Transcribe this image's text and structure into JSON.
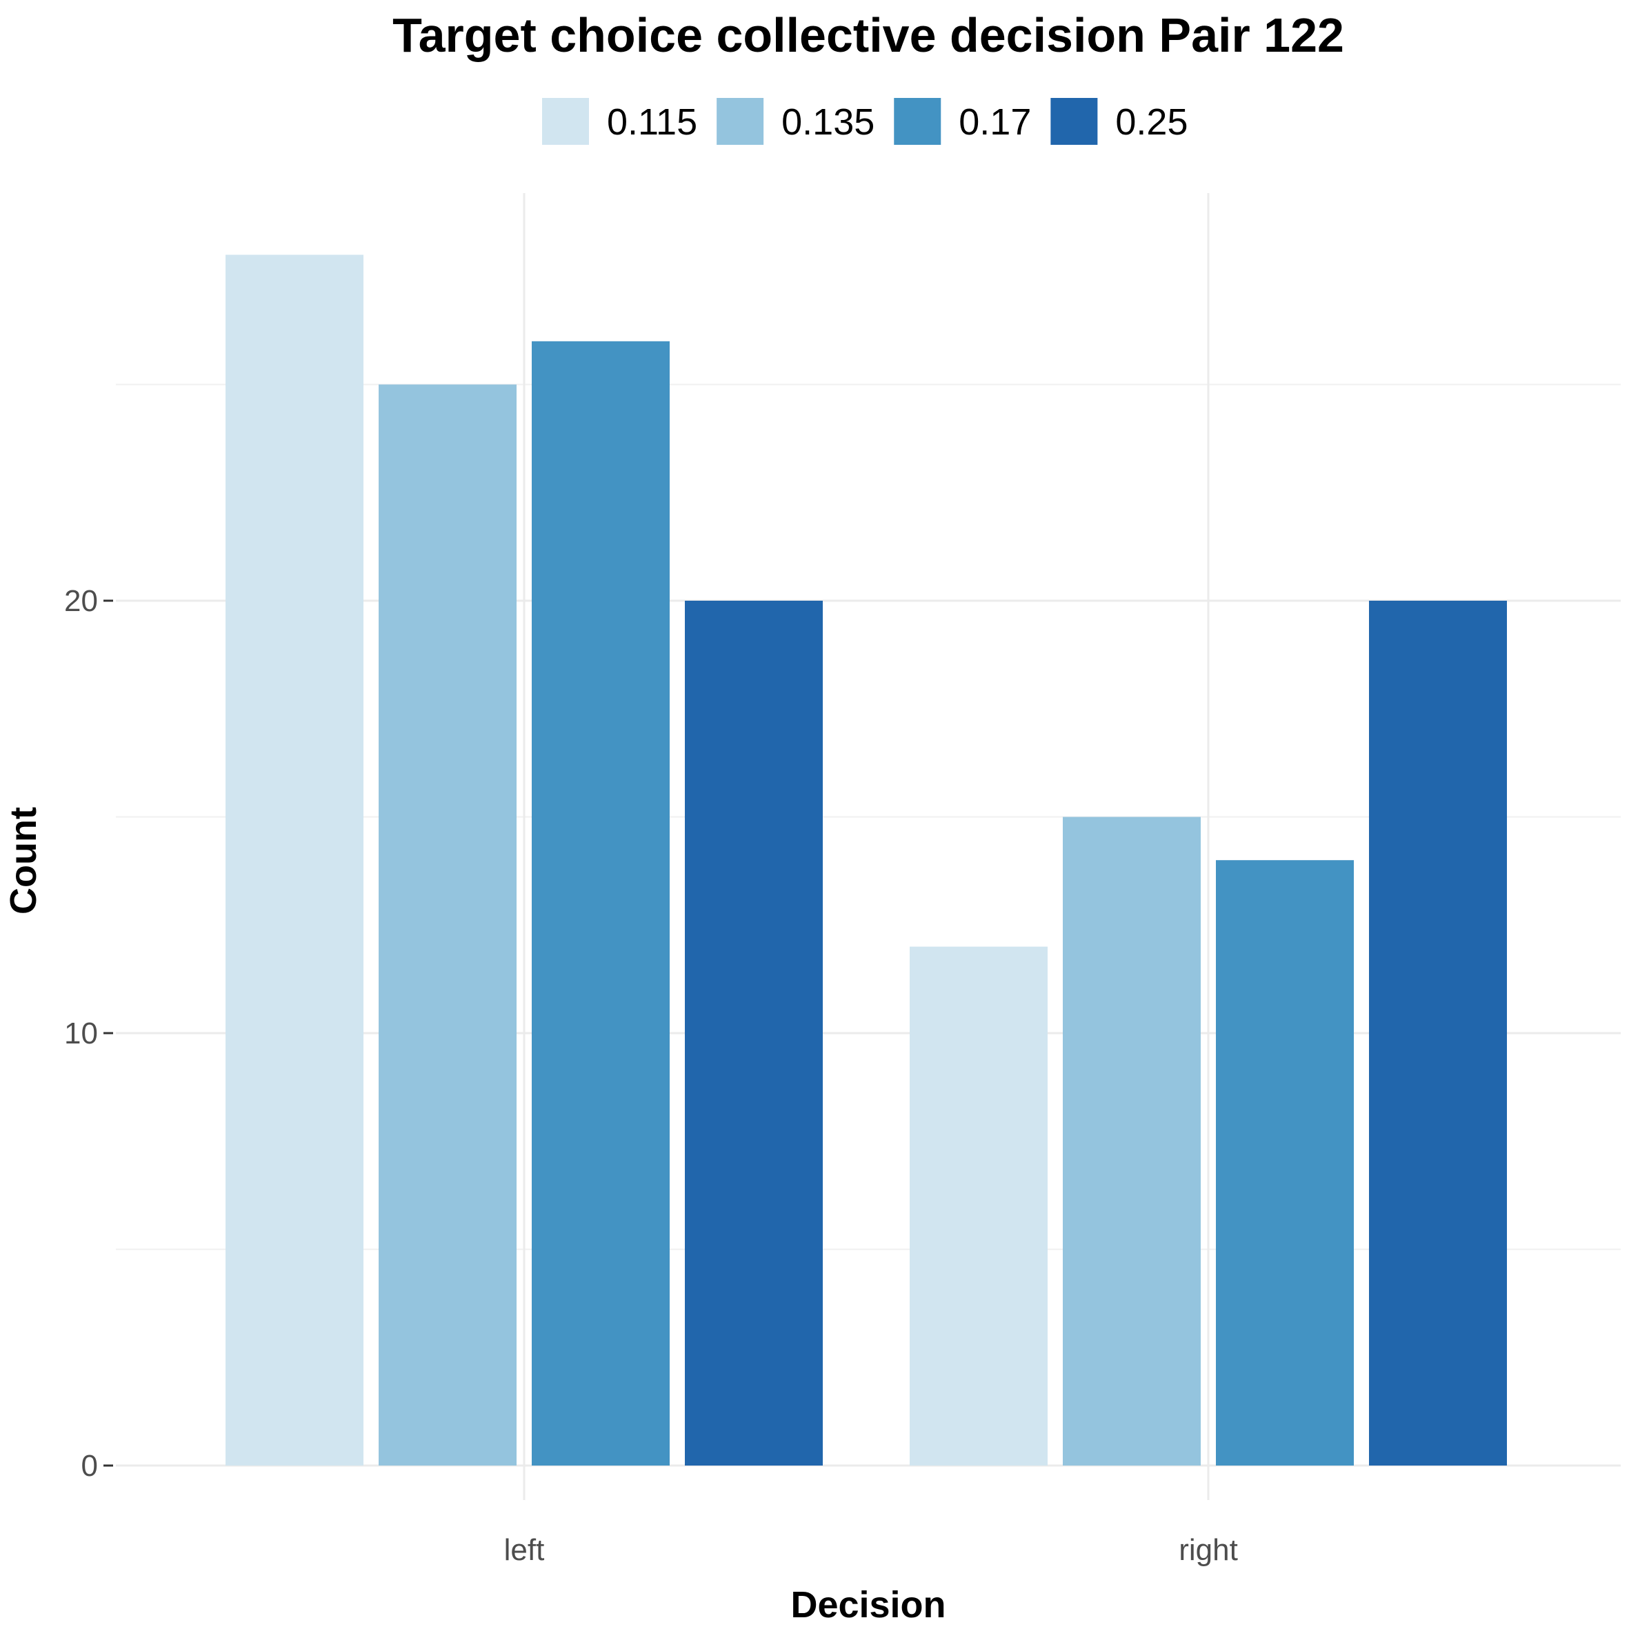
{
  "chart_data": {
    "type": "bar",
    "title": "Target choice collective decision Pair 122",
    "xlabel": "Decision",
    "ylabel": "Count",
    "categories": [
      "left",
      "right"
    ],
    "series": [
      {
        "name": "0.115",
        "color": "#D1E5F0",
        "values": [
          28,
          12
        ]
      },
      {
        "name": "0.135",
        "color": "#94C4DE",
        "values": [
          25,
          15
        ]
      },
      {
        "name": "0.17",
        "color": "#4393C3",
        "values": [
          26,
          14
        ]
      },
      {
        "name": "0.25",
        "color": "#2166AC",
        "values": [
          20,
          20
        ]
      }
    ],
    "yticks": [
      0,
      10,
      20
    ],
    "ylim": [
      0,
      28
    ],
    "grid": true,
    "legend_position": "top"
  }
}
